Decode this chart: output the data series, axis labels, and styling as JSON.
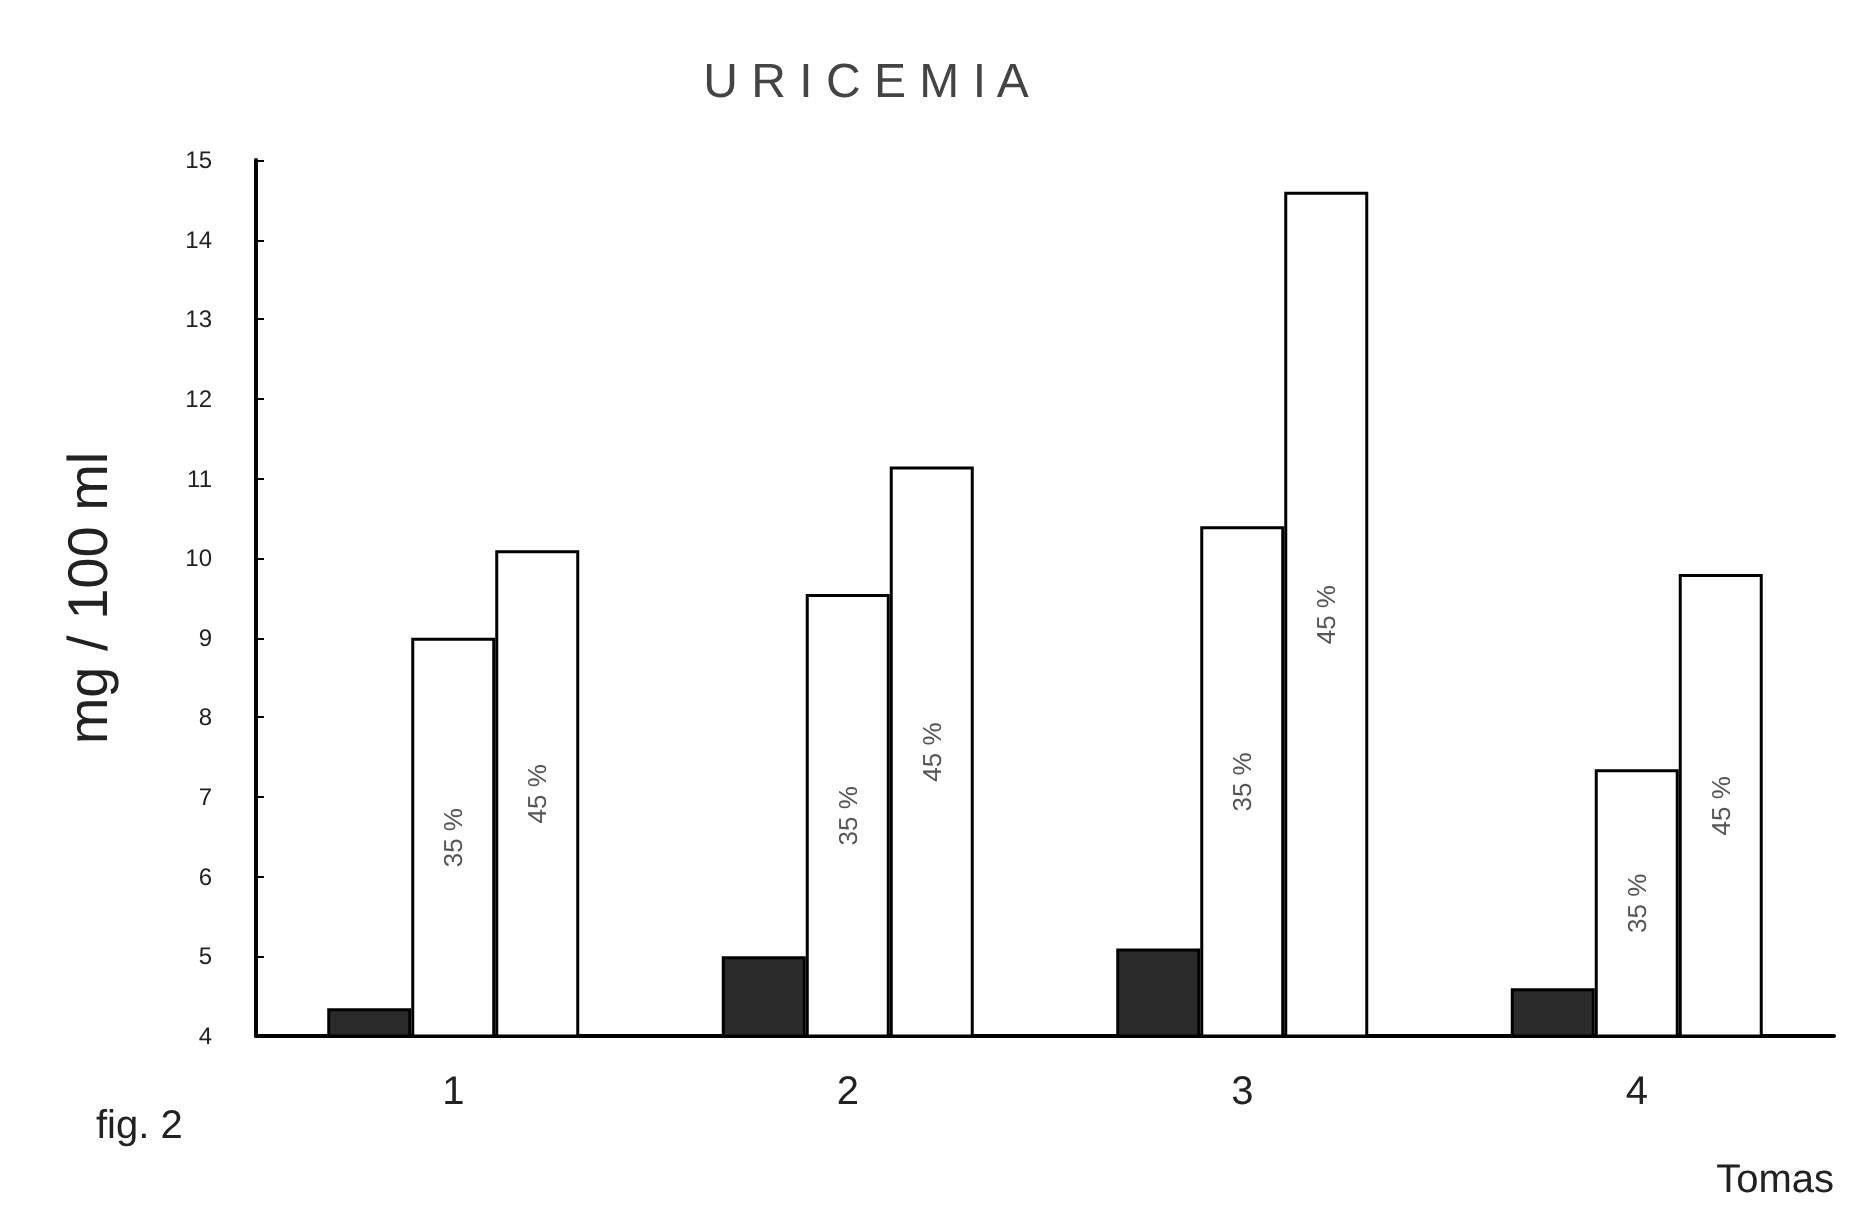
{
  "chart_data": {
    "type": "bar",
    "title": "U R I C E M I A",
    "ylabel": "mg / 100 ml",
    "xlabel": "Tomas",
    "categories": [
      "1",
      "2",
      "3",
      "4"
    ],
    "series": [
      {
        "color": "#2b2b2b",
        "values": [
          4.35,
          5.0,
          5.1,
          4.6
        ]
      },
      {
        "name": "35 %",
        "color": "#ffffff",
        "values": [
          9.0,
          9.55,
          10.4,
          7.35
        ]
      },
      {
        "name": "45 %",
        "color": "#ffffff",
        "values": [
          10.1,
          11.15,
          14.6,
          9.8
        ]
      }
    ],
    "ylim": [
      4,
      15
    ],
    "yticks": [
      4,
      5,
      6,
      7,
      8,
      9,
      10,
      11,
      12,
      13,
      14,
      15
    ],
    "grid": false,
    "legend": false,
    "annotations": [
      "fig. 2"
    ]
  }
}
